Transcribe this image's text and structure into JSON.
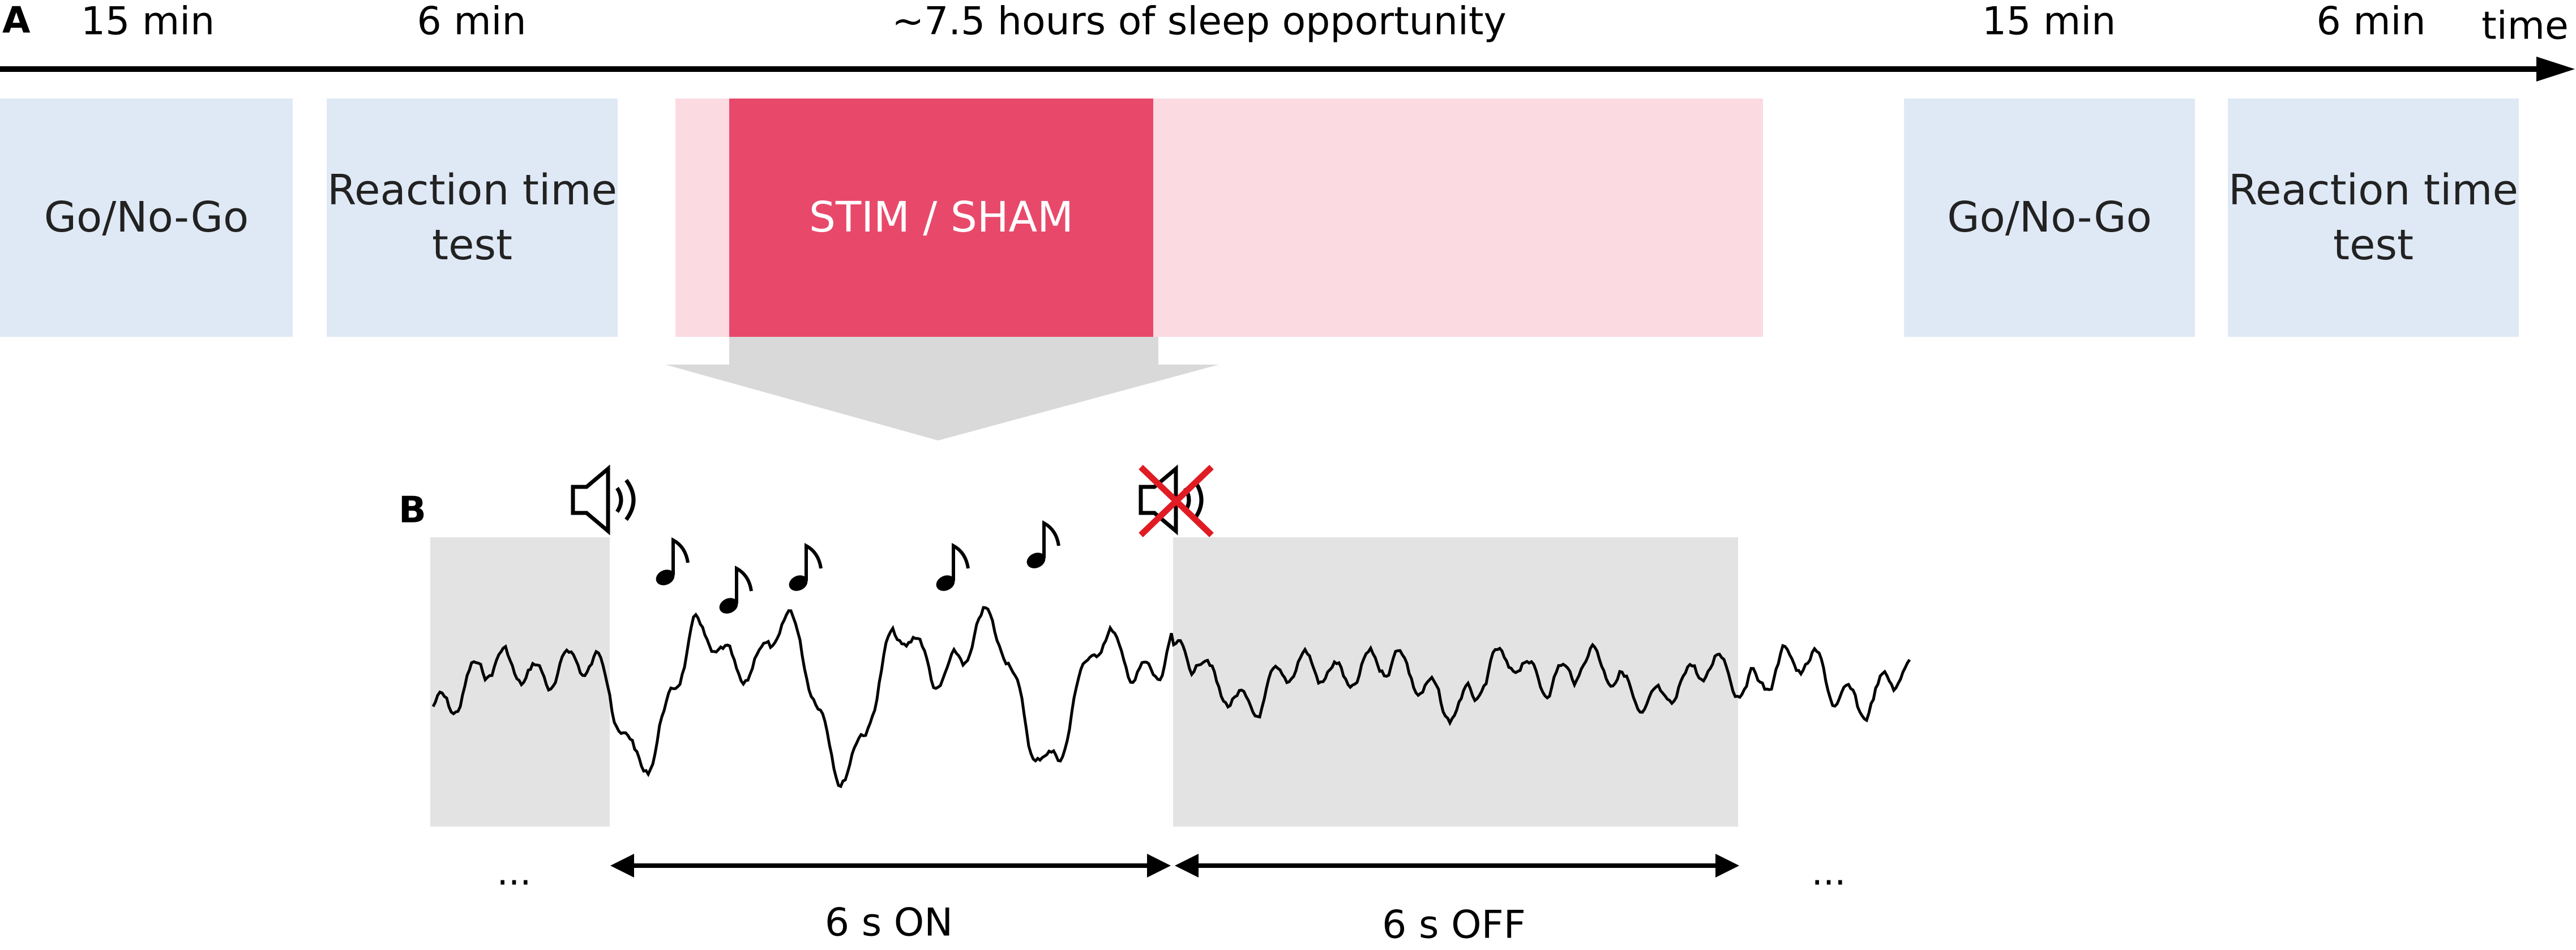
{
  "panel_a": {
    "label": "A",
    "durations": [
      "15 min",
      "6 min",
      "~7.5 hours of sleep opportunity",
      "15 min",
      "6 min"
    ],
    "axis_label": "time",
    "blocks": [
      "Go/No-Go",
      "Reaction time test",
      "STIM / SHAM",
      "Go/No-Go",
      "Reaction time test"
    ]
  },
  "panel_b": {
    "label": "B",
    "ellipses": [
      "...",
      "..."
    ],
    "on_label": "6 s ON",
    "off_label": "6 s OFF"
  }
}
